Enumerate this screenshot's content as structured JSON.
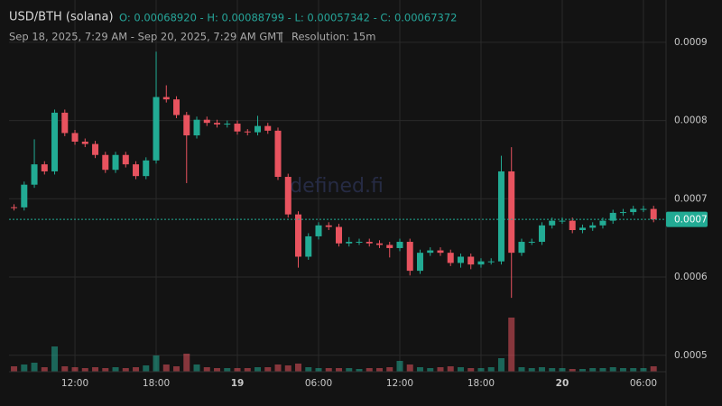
{
  "chart_data": {
    "type": "candlestick",
    "title": "USD/BTH (solana)",
    "ohlc_text": "O: 0.00068920 - H: 0.00088799 - L: 0.00057342 - C: 0.00067372",
    "range_text": "Sep 18, 2025, 7:29 AM - Sep 20, 2025, 7:29 AM GMT",
    "separator": "|",
    "resolution_text": "Resolution: 15m",
    "watermark": "defined.fi",
    "last_price_label": "0.0007",
    "up_color": "#22ab94",
    "down_color": "#e8535f",
    "grid": true,
    "xlim": [
      7.13,
      55.67
    ],
    "xticks": [
      {
        "value": 12,
        "label": "12:00"
      },
      {
        "value": 18,
        "label": "18:00"
      },
      {
        "value": 24,
        "label": "19"
      },
      {
        "value": 30,
        "label": "06:00"
      },
      {
        "value": 36,
        "label": "12:00"
      },
      {
        "value": 42,
        "label": "18:00"
      },
      {
        "value": 48,
        "label": "20"
      },
      {
        "value": 54,
        "label": "06:00"
      }
    ],
    "ylim": [
      0.000479,
      0.000954
    ],
    "yticks": [
      0.0005,
      0.0006,
      0.0007,
      0.0008,
      0.0009
    ],
    "x": [
      7.5,
      8.25,
      9,
      9.75,
      10.5,
      11.25,
      12,
      12.75,
      13.5,
      14.25,
      15,
      15.75,
      16.5,
      17.25,
      18,
      18.75,
      19.5,
      20.25,
      21,
      21.75,
      22.5,
      23.25,
      24,
      24.75,
      25.5,
      26.25,
      27,
      27.75,
      28.5,
      29.25,
      30,
      30.75,
      31.5,
      32.25,
      33,
      33.75,
      34.5,
      35.25,
      36,
      36.75,
      37.5,
      38.25,
      39,
      39.75,
      40.5,
      41.25,
      42,
      42.75,
      43.5,
      44.25,
      45,
      45.75,
      46.5,
      47.25,
      48,
      48.75,
      49.5,
      50.25,
      51,
      51.75,
      52.5,
      53.25,
      54,
      54.75
    ],
    "open": [
      0.0006892,
      0.000689,
      0.000718,
      0.000744,
      0.000735,
      0.00081,
      0.000784,
      0.000773,
      0.00077,
      0.000756,
      0.000737,
      0.000756,
      0.000744,
      0.000729,
      0.000749,
      0.00083,
      0.000827,
      0.000807,
      0.000781,
      0.000801,
      0.000797,
      0.000795,
      0.000796,
      0.000786,
      0.000785,
      0.000793,
      0.000787,
      0.000728,
      0.00068,
      0.000626,
      0.000652,
      0.000666,
      0.000664,
      0.000643,
      0.000645,
      0.000645,
      0.000643,
      0.000641,
      0.000637,
      0.000645,
      0.000608,
      0.000631,
      0.000634,
      0.000631,
      0.000618,
      0.000626,
      0.000616,
      0.00062,
      0.00062,
      0.000735,
      0.000631,
      0.000645,
      0.000645,
      0.000666,
      0.000672,
      0.000672,
      0.00066,
      0.000663,
      0.000666,
      0.000672,
      0.000682,
      0.000683,
      0.000687,
      0.000687
    ],
    "high": [
      0.000693,
      0.000722,
      0.000776,
      0.000748,
      0.000814,
      0.000814,
      0.000788,
      0.000777,
      0.000774,
      0.00076,
      0.00076,
      0.00076,
      0.000748,
      0.000753,
      0.00088799,
      0.000845,
      0.000831,
      0.000811,
      0.000805,
      0.000805,
      0.000801,
      0.0008,
      0.0008,
      0.000789,
      0.000806,
      0.000797,
      0.000791,
      0.000732,
      0.000684,
      0.000656,
      0.00067,
      0.00067,
      0.000668,
      0.000651,
      0.000649,
      0.000649,
      0.000647,
      0.000645,
      0.000649,
      0.000649,
      0.000635,
      0.000638,
      0.000638,
      0.000635,
      0.00063,
      0.00063,
      0.000624,
      0.000624,
      0.000755,
      0.000766,
      0.000649,
      0.000649,
      0.00067,
      0.000676,
      0.000676,
      0.000676,
      0.000667,
      0.00067,
      0.000676,
      0.000686,
      0.000687,
      0.000691,
      0.000691,
      0.000691
    ],
    "low": [
      0.000685,
      0.000685,
      0.000714,
      0.000731,
      0.000731,
      0.00078,
      0.000769,
      0.000766,
      0.000752,
      0.000733,
      0.000733,
      0.00074,
      0.000725,
      0.000725,
      0.000745,
      0.000823,
      0.000803,
      0.00072,
      0.000777,
      0.000793,
      0.000791,
      0.000791,
      0.000782,
      0.000781,
      0.000781,
      0.000783,
      0.000724,
      0.000676,
      0.000612,
      0.000622,
      0.000648,
      0.00066,
      0.000639,
      0.000639,
      0.000641,
      0.000639,
      0.000637,
      0.000625,
      0.000633,
      0.000602,
      0.000604,
      0.000627,
      0.000627,
      0.000614,
      0.000612,
      0.00061,
      0.000612,
      0.000616,
      0.000616,
      0.00057342,
      0.000627,
      0.000641,
      0.000641,
      0.000662,
      0.000668,
      0.000656,
      0.000656,
      0.000659,
      0.000662,
      0.000668,
      0.000678,
      0.000679,
      0.000683,
      0.00067
    ],
    "close": [
      0.000689,
      0.000718,
      0.000744,
      0.000735,
      0.00081,
      0.000784,
      0.000773,
      0.00077,
      0.000756,
      0.000737,
      0.000756,
      0.000744,
      0.000729,
      0.000749,
      0.00083,
      0.000827,
      0.000807,
      0.000781,
      0.000801,
      0.000797,
      0.000795,
      0.000796,
      0.000786,
      0.000785,
      0.000793,
      0.000787,
      0.000728,
      0.00068,
      0.000626,
      0.000652,
      0.000666,
      0.000664,
      0.000643,
      0.000645,
      0.000645,
      0.000643,
      0.000641,
      0.000637,
      0.000645,
      0.000608,
      0.000631,
      0.000634,
      0.000631,
      0.000618,
      0.000626,
      0.000616,
      0.00062,
      0.00062,
      0.000735,
      0.000631,
      0.000645,
      0.000645,
      0.000666,
      0.000672,
      0.000672,
      0.00066,
      0.000663,
      0.000666,
      0.000672,
      0.000682,
      0.000683,
      0.000687,
      0.000687,
      0.00067372
    ],
    "volume": [
      6,
      8,
      10,
      5,
      28,
      6,
      5,
      4,
      5,
      4,
      5,
      4,
      5,
      7,
      18,
      8,
      6,
      20,
      8,
      5,
      4,
      4,
      4,
      4,
      5,
      5,
      8,
      7,
      9,
      5,
      4,
      4,
      4,
      4,
      3,
      4,
      4,
      5,
      12,
      8,
      5,
      4,
      5,
      6,
      5,
      4,
      4,
      5,
      15,
      60,
      5,
      4,
      5,
      4,
      4,
      3,
      3,
      4,
      4,
      5,
      4,
      4,
      4,
      6
    ]
  }
}
